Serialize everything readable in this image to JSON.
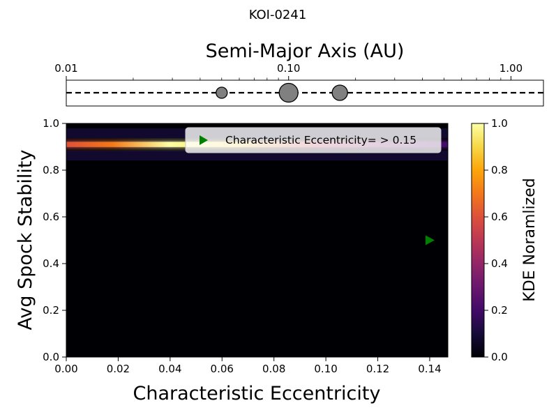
{
  "figure": {
    "title": "KOI-0241"
  },
  "chart_data": [
    {
      "type": "scatter",
      "panel": "orbit-strip",
      "xlabel": "Semi-Major Axis (AU)",
      "xscale": "log",
      "xlim": [
        0.01,
        1.4
      ],
      "xticks": [
        0.01,
        0.1,
        1.0
      ],
      "xtick_labels": [
        "0.01",
        "0.10",
        "1.00"
      ],
      "planets": [
        {
          "a": 0.05,
          "size": "small"
        },
        {
          "a": 0.1,
          "size": "large"
        },
        {
          "a": 0.17,
          "size": "medium"
        }
      ],
      "planet_color": "#808080",
      "line_style": "dashed"
    },
    {
      "type": "heatmap",
      "panel": "kde",
      "xlabel": "Characteristic Eccentricity",
      "ylabel": "Avg Spock Stability",
      "xlim": [
        0.0,
        0.147
      ],
      "ylim": [
        0.0,
        1.0
      ],
      "xticks": [
        0.0,
        0.02,
        0.04,
        0.06,
        0.08,
        0.1,
        0.12,
        0.14
      ],
      "xtick_labels": [
        "0.00",
        "0.02",
        "0.04",
        "0.06",
        "0.08",
        "0.10",
        "0.12",
        "0.14"
      ],
      "yticks": [
        0.0,
        0.2,
        0.4,
        0.6,
        0.8,
        1.0
      ],
      "ytick_labels": [
        "0.0",
        "0.2",
        "0.4",
        "0.6",
        "0.8",
        "1.0"
      ],
      "colormap": "inferno",
      "kde_ridge": {
        "stability": 0.91,
        "ecc_range": [
          0.0,
          0.147
        ],
        "peak_ecc": 0.04
      },
      "marker": {
        "x": 0.14,
        "y": 0.5,
        "symbol": "triangle-right",
        "color": "#008000"
      },
      "legend": {
        "label": "Characteristic Eccentricity$=>0.15$",
        "text": "Characteristic Eccentricity= > 0.15",
        "placement": "upper right"
      },
      "colorbar": {
        "label": "KDE Noramlized",
        "ticks": [
          0.0,
          0.2,
          0.4,
          0.6,
          0.8,
          1.0
        ],
        "tick_labels": [
          "0.0",
          "0.2",
          "0.4",
          "0.6",
          "0.8",
          "1.0"
        ]
      }
    }
  ]
}
